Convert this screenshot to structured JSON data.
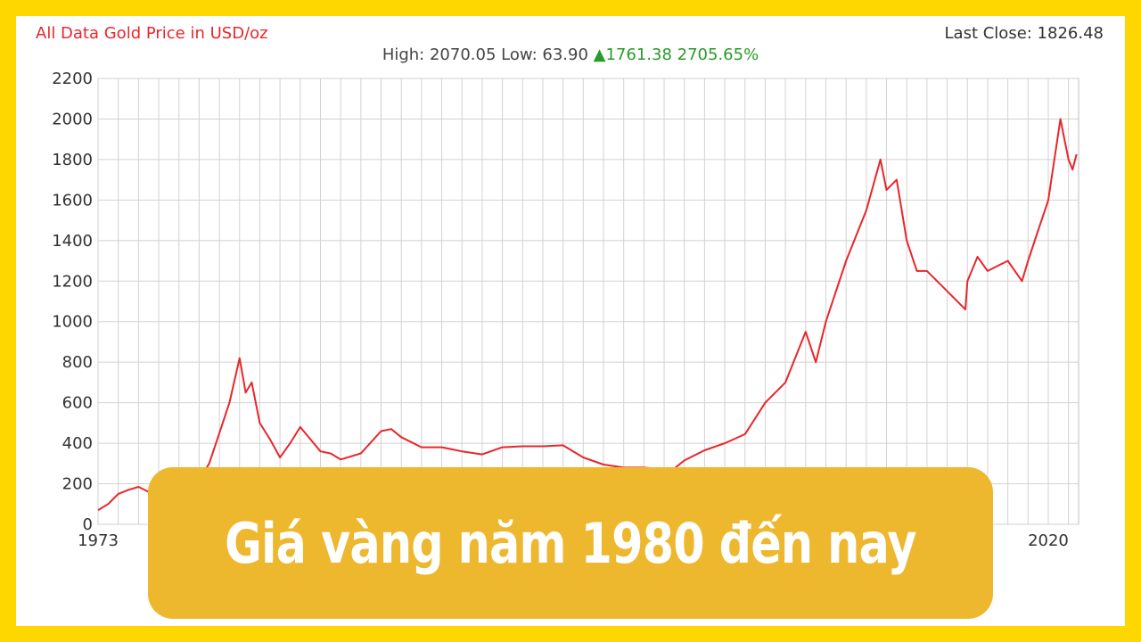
{
  "header": {
    "title": "All Data Gold Price in USD/oz",
    "last_close": "Last Close: 1826.48",
    "high_low": "High: 2070.05 Low: 63.90",
    "change": "▲1761.38 2705.65%"
  },
  "banner": {
    "text": "Giá vàng năm 1980 đến nay"
  },
  "colors": {
    "frame": "#FFD700",
    "banner": "#EDB72E",
    "line": "#e8262b",
    "up": "#2a9a2a"
  },
  "chart_data": {
    "type": "line",
    "title": "All Data Gold Price in USD/oz",
    "ylim": [
      0,
      2200
    ],
    "yticks": [
      0,
      200,
      400,
      600,
      800,
      1000,
      1200,
      1400,
      1600,
      1800,
      2000,
      2200
    ],
    "xlim": [
      1973,
      2021.5
    ],
    "xtick_labels": [
      {
        "x": 1973,
        "label": "1973"
      },
      {
        "x": 2020,
        "label": "2020"
      }
    ],
    "grid": true,
    "series": [
      {
        "color": "#e8262b",
        "x": [
          1973,
          1973.5,
          1974,
          1974.5,
          1975,
          1975.5,
          1976,
          1976.5,
          1977,
          1977.5,
          1978,
          1978.5,
          1979,
          1979.5,
          1980,
          1980.3,
          1980.6,
          1981,
          1981.5,
          1982,
          1982.5,
          1983,
          1983.5,
          1984,
          1984.5,
          1985,
          1986,
          1987,
          1987.5,
          1988,
          1989,
          1990,
          1991,
          1992,
          1993,
          1994,
          1995,
          1996,
          1997,
          1998,
          1999,
          2000,
          2001,
          2001.5,
          2002,
          2003,
          2004,
          2005,
          2006,
          2007,
          2008,
          2008.5,
          2009,
          2010,
          2011,
          2011.7,
          2012,
          2012.5,
          2013,
          2013.5,
          2014,
          2015,
          2015.9,
          2016,
          2016.5,
          2017,
          2018,
          2018.7,
          2019,
          2019.5,
          2020,
          2020.6,
          2020.8,
          2021,
          2021.2,
          2021.4
        ],
        "y": [
          70,
          100,
          150,
          170,
          185,
          160,
          150,
          160,
          180,
          200,
          220,
          300,
          450,
          600,
          820,
          650,
          700,
          500,
          420,
          330,
          400,
          480,
          420,
          360,
          350,
          320,
          350,
          460,
          470,
          430,
          380,
          380,
          360,
          345,
          380,
          385,
          385,
          390,
          330,
          295,
          280,
          280,
          270,
          275,
          315,
          365,
          400,
          445,
          600,
          700,
          950,
          800,
          1000,
          1300,
          1550,
          1800,
          1650,
          1700,
          1400,
          1250,
          1250,
          1150,
          1060,
          1200,
          1320,
          1250,
          1300,
          1200,
          1300,
          1450,
          1600,
          2000,
          1900,
          1800,
          1750,
          1826
        ]
      }
    ]
  }
}
